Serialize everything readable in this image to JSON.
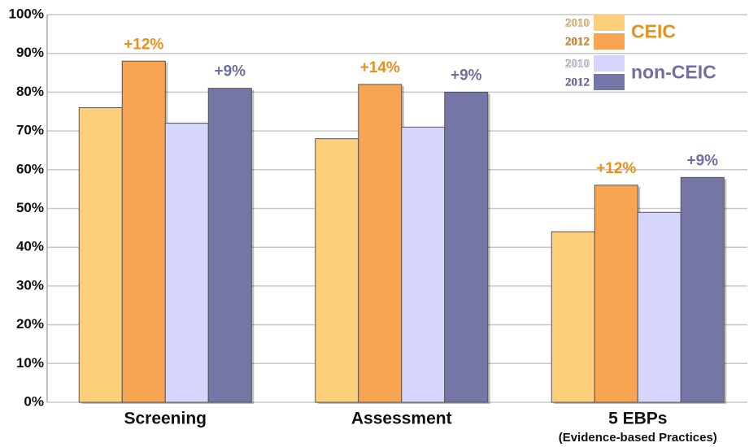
{
  "chart_data": {
    "type": "bar",
    "categories": [
      "Screening",
      "Assessment",
      "5 EBPs"
    ],
    "category_notes": [
      null,
      null,
      "(Evidence-based Practices)"
    ],
    "series": [
      {
        "name": "2010",
        "color": "#fcd07a",
        "values": [
          76,
          68,
          44
        ]
      },
      {
        "name": "2012",
        "color": "#f7a552",
        "values": [
          88,
          82,
          56
        ]
      },
      {
        "name": "2010",
        "color": "#d6d6fc",
        "values": [
          72,
          71,
          49
        ]
      },
      {
        "name": "2012",
        "color": "#7676a6",
        "values": [
          81,
          80,
          58
        ]
      }
    ],
    "legend_groups": [
      {
        "name": "CEIC",
        "color": "#e8901e",
        "series": [
          0,
          1
        ]
      },
      {
        "name": "non-CEIC",
        "color": "#7070a0",
        "series": [
          2,
          3
        ]
      }
    ],
    "annotations": [
      {
        "text": "+12%",
        "category": 0,
        "series": 1,
        "color": "#e8901e"
      },
      {
        "text": "+9%",
        "category": 0,
        "series": 3,
        "color": "#7070a0"
      },
      {
        "text": "+14%",
        "category": 1,
        "series": 1,
        "color": "#e8901e"
      },
      {
        "text": "+9%",
        "category": 1,
        "series": 3,
        "color": "#7070a0"
      },
      {
        "text": "+12%",
        "category": 2,
        "series": 1,
        "color": "#e8901e"
      },
      {
        "text": "+9%",
        "category": 2,
        "series": 3,
        "color": "#7070a0"
      }
    ],
    "ylim": [
      0,
      100
    ],
    "yticks": [
      {
        "value": 0,
        "label": "0%"
      },
      {
        "value": 10,
        "label": "10%"
      },
      {
        "value": 20,
        "label": "20%"
      },
      {
        "value": 30,
        "label": "30%"
      },
      {
        "value": 40,
        "label": "40%"
      },
      {
        "value": 50,
        "label": "50%"
      },
      {
        "value": 60,
        "label": "60%"
      },
      {
        "value": 70,
        "label": "70%"
      },
      {
        "value": 80,
        "label": "80%"
      },
      {
        "value": 90,
        "label": "90%"
      },
      {
        "value": 100,
        "label": "100%"
      }
    ],
    "grid": true
  }
}
